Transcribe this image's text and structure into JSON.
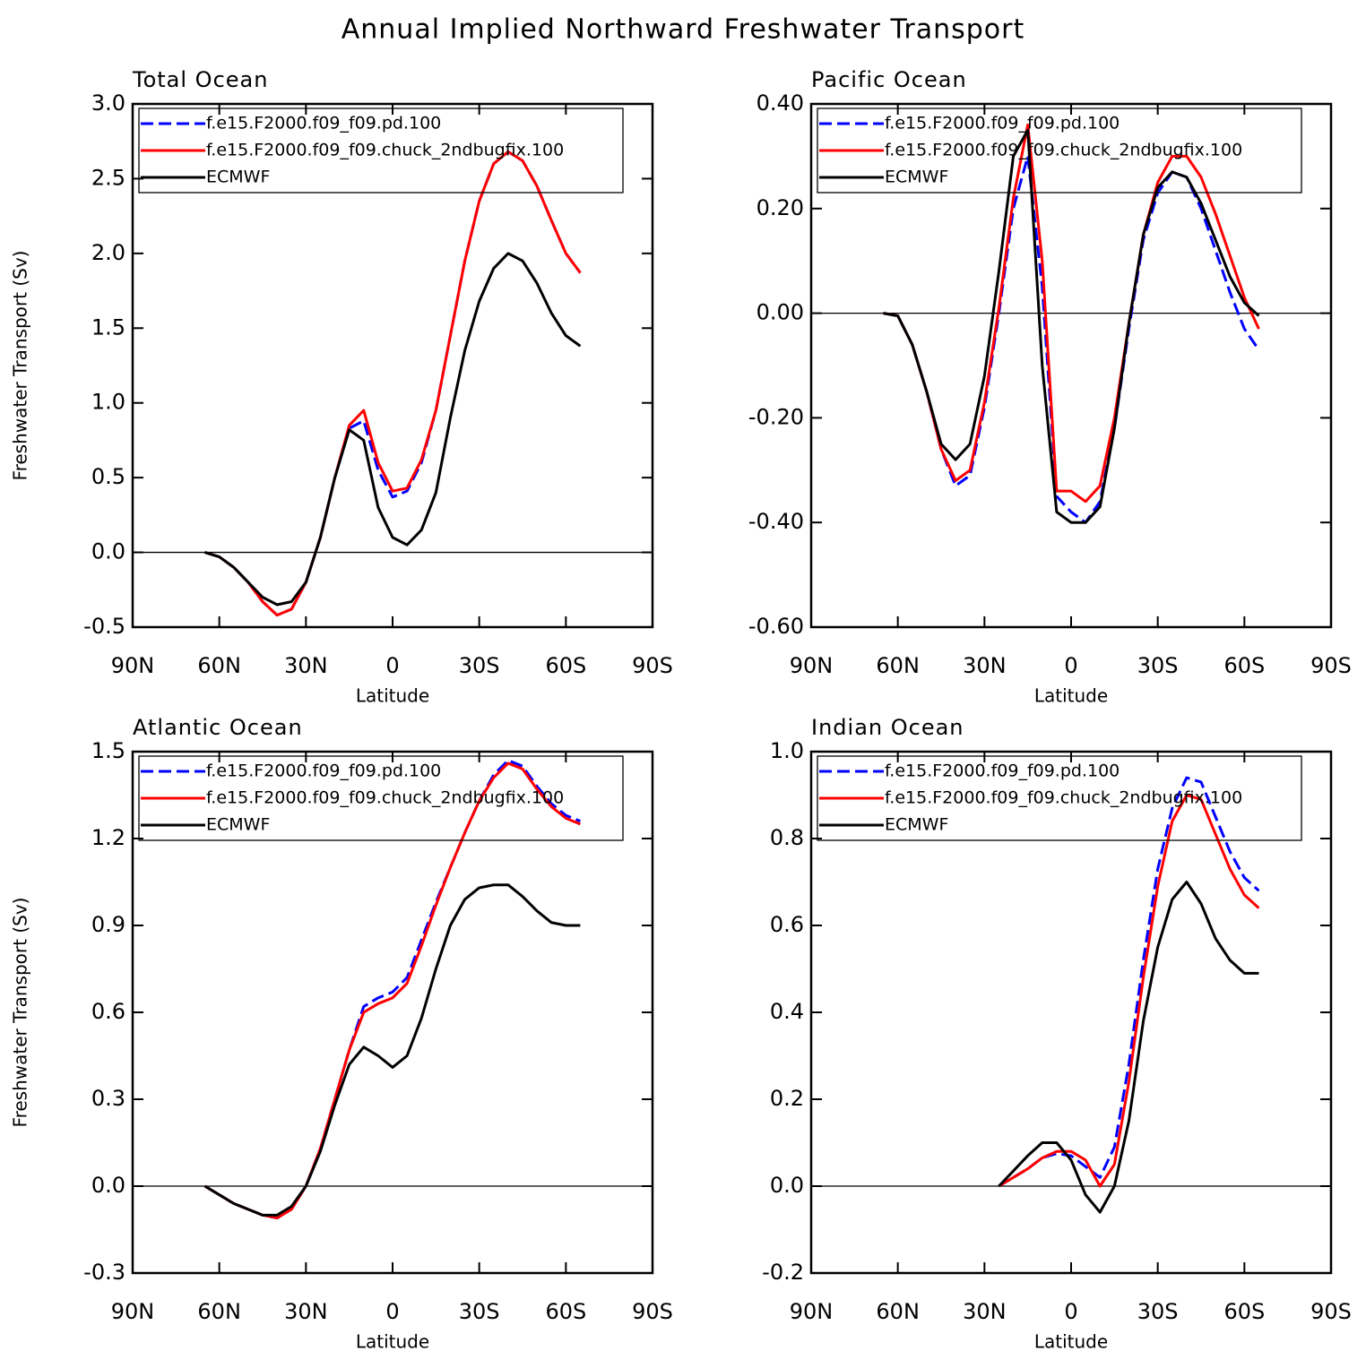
{
  "title": "Annual Implied Northward Freshwater Transport",
  "chart_data": [
    {
      "type": "line",
      "title": "Total Ocean",
      "x_label": "Latitude",
      "y_label": "Freshwater Transport (Sv)",
      "x": [
        65,
        60,
        55,
        50,
        45,
        40,
        35,
        30,
        25,
        20,
        15,
        10,
        5,
        0,
        -5,
        -10,
        -15,
        -20,
        -25,
        -30,
        -35,
        -40,
        -45,
        -50,
        -55,
        -60,
        -65
      ],
      "series": [
        {
          "name": "f.e15.F2000.f09_f09.pd.100",
          "color": "#0000ff",
          "line_style": "dashed",
          "values": [
            0,
            -0.03,
            -0.1,
            -0.2,
            -0.33,
            -0.42,
            -0.38,
            -0.2,
            0.1,
            0.5,
            0.83,
            0.88,
            0.55,
            0.37,
            0.41,
            0.6,
            0.95,
            1.45,
            1.95,
            2.35,
            2.6,
            2.68,
            2.62,
            2.45,
            2.22,
            2.0,
            1.87
          ]
        },
        {
          "name": "f.e15.F2000.f09_f09.chuck_2ndbugfix.100",
          "color": "#ff0000",
          "line_style": "solid",
          "values": [
            0,
            -0.03,
            -0.1,
            -0.2,
            -0.33,
            -0.42,
            -0.38,
            -0.2,
            0.1,
            0.5,
            0.85,
            0.95,
            0.6,
            0.41,
            0.43,
            0.62,
            0.95,
            1.45,
            1.95,
            2.35,
            2.6,
            2.68,
            2.62,
            2.45,
            2.22,
            2.0,
            1.87
          ]
        },
        {
          "name": "ECMWF",
          "color": "#000000",
          "line_style": "solid",
          "values": [
            0,
            -0.03,
            -0.1,
            -0.2,
            -0.3,
            -0.35,
            -0.33,
            -0.2,
            0.1,
            0.5,
            0.82,
            0.75,
            0.3,
            0.1,
            0.05,
            0.15,
            0.4,
            0.9,
            1.35,
            1.68,
            1.9,
            2.0,
            1.95,
            1.8,
            1.6,
            1.45,
            1.38
          ]
        }
      ],
      "xlim": [
        90,
        -90
      ],
      "xticks": [
        {
          "value": 90,
          "label": "90N"
        },
        {
          "value": 60,
          "label": "60N"
        },
        {
          "value": 30,
          "label": "30N"
        },
        0,
        {
          "value": -30,
          "label": "30S"
        },
        {
          "value": -60,
          "label": "60S"
        },
        {
          "value": -90,
          "label": "90S"
        }
      ],
      "ylim": [
        -0.5,
        3.0
      ],
      "yticks": [
        -0.5,
        {
          "value": 0,
          "label": "0.0"
        },
        0.5,
        {
          "value": 1,
          "label": "1.0"
        },
        1.5,
        {
          "value": 2,
          "label": "2.0"
        },
        2.5,
        {
          "value": 3,
          "label": "3.0"
        }
      ]
    },
    {
      "type": "line",
      "title": "Pacific Ocean",
      "x_label": "Latitude",
      "x": [
        65,
        60,
        55,
        50,
        45,
        40,
        35,
        30,
        25,
        20,
        15,
        10,
        5,
        0,
        -5,
        -10,
        -15,
        -20,
        -25,
        -30,
        -35,
        -40,
        -45,
        -50,
        -55,
        -60,
        -65
      ],
      "series": [
        {
          "name": "f.e15.F2000.f09_f09.pd.100",
          "color": "#0000ff",
          "line_style": "dashed",
          "values": [
            0,
            -0.005,
            -0.06,
            -0.15,
            -0.26,
            -0.33,
            -0.31,
            -0.18,
            0.0,
            0.2,
            0.3,
            0.05,
            -0.35,
            -0.38,
            -0.4,
            -0.36,
            -0.22,
            -0.03,
            0.14,
            0.23,
            0.27,
            0.26,
            0.2,
            0.12,
            0.04,
            -0.03,
            -0.07
          ]
        },
        {
          "name": "f.e15.F2000.f09_f09.chuck_2ndbugfix.100",
          "color": "#ff0000",
          "line_style": "solid",
          "values": [
            0,
            -0.005,
            -0.06,
            -0.15,
            -0.26,
            -0.32,
            -0.3,
            -0.17,
            0.01,
            0.22,
            0.36,
            0.1,
            -0.34,
            -0.34,
            -0.36,
            -0.33,
            -0.2,
            -0.02,
            0.15,
            0.25,
            0.3,
            0.3,
            0.26,
            0.19,
            0.11,
            0.03,
            -0.03
          ]
        },
        {
          "name": "ECMWF",
          "color": "#000000",
          "line_style": "solid",
          "values": [
            0,
            -0.005,
            -0.06,
            -0.15,
            -0.25,
            -0.28,
            -0.25,
            -0.12,
            0.08,
            0.3,
            0.35,
            -0.1,
            -0.38,
            -0.4,
            -0.4,
            -0.37,
            -0.22,
            -0.02,
            0.15,
            0.24,
            0.27,
            0.26,
            0.21,
            0.14,
            0.07,
            0.02,
            -0.005
          ]
        }
      ],
      "xlim": [
        90,
        -90
      ],
      "xticks": [
        {
          "value": 90,
          "label": "90N"
        },
        {
          "value": 60,
          "label": "60N"
        },
        {
          "value": 30,
          "label": "30N"
        },
        0,
        {
          "value": -30,
          "label": "30S"
        },
        {
          "value": -60,
          "label": "60S"
        },
        {
          "value": -90,
          "label": "90S"
        }
      ],
      "ylim": [
        -0.6,
        0.4
      ],
      "yticks": [
        {
          "value": -0.6,
          "label": "-0.60"
        },
        {
          "value": -0.4,
          "label": "-0.40"
        },
        {
          "value": -0.2,
          "label": "-0.20"
        },
        {
          "value": 0,
          "label": "0.00"
        },
        {
          "value": 0.2,
          "label": "0.20"
        },
        {
          "value": 0.4,
          "label": "0.40"
        }
      ]
    },
    {
      "type": "line",
      "title": "Atlantic Ocean",
      "x_label": "Latitude",
      "y_label": "Freshwater Transport (Sv)",
      "x": [
        65,
        60,
        55,
        50,
        45,
        40,
        35,
        30,
        25,
        20,
        15,
        10,
        5,
        0,
        -5,
        -10,
        -15,
        -20,
        -25,
        -30,
        -35,
        -40,
        -45,
        -50,
        -55,
        -60,
        -65
      ],
      "series": [
        {
          "name": "f.e15.F2000.f09_f09.pd.100",
          "color": "#0000ff",
          "line_style": "dashed",
          "values": [
            0,
            -0.03,
            -0.06,
            -0.08,
            -0.1,
            -0.11,
            -0.08,
            0,
            0.13,
            0.3,
            0.47,
            0.62,
            0.65,
            0.67,
            0.72,
            0.85,
            0.98,
            1.1,
            1.22,
            1.33,
            1.42,
            1.47,
            1.45,
            1.38,
            1.32,
            1.28,
            1.26
          ]
        },
        {
          "name": "f.e15.F2000.f09_f09.chuck_2ndbugfix.100",
          "color": "#ff0000",
          "line_style": "solid",
          "values": [
            0,
            -0.03,
            -0.06,
            -0.08,
            -0.1,
            -0.11,
            -0.08,
            0,
            0.13,
            0.3,
            0.47,
            0.6,
            0.63,
            0.65,
            0.7,
            0.83,
            0.97,
            1.1,
            1.22,
            1.33,
            1.41,
            1.46,
            1.44,
            1.37,
            1.31,
            1.27,
            1.25
          ]
        },
        {
          "name": "ECMWF",
          "color": "#000000",
          "line_style": "solid",
          "values": [
            0,
            -0.03,
            -0.06,
            -0.08,
            -0.1,
            -0.1,
            -0.07,
            0,
            0.12,
            0.28,
            0.42,
            0.48,
            0.45,
            0.41,
            0.45,
            0.58,
            0.75,
            0.9,
            0.99,
            1.03,
            1.04,
            1.04,
            1.0,
            0.95,
            0.91,
            0.9,
            0.9
          ]
        }
      ],
      "xlim": [
        90,
        -90
      ],
      "xticks": [
        {
          "value": 90,
          "label": "90N"
        },
        {
          "value": 60,
          "label": "60N"
        },
        {
          "value": 30,
          "label": "30N"
        },
        0,
        {
          "value": -30,
          "label": "30S"
        },
        {
          "value": -60,
          "label": "60S"
        },
        {
          "value": -90,
          "label": "90S"
        }
      ],
      "ylim": [
        -0.3,
        1.5
      ],
      "yticks": [
        -0.3,
        {
          "value": 0,
          "label": "0.0"
        },
        0.3,
        0.6,
        0.9,
        1.2,
        1.5
      ]
    },
    {
      "type": "line",
      "title": "Indian Ocean",
      "x_label": "Latitude",
      "x": [
        25,
        20,
        15,
        10,
        5,
        0,
        -5,
        -10,
        -15,
        -20,
        -25,
        -30,
        -35,
        -40,
        -45,
        -50,
        -55,
        -60,
        -65
      ],
      "series": [
        {
          "name": "f.e15.F2000.f09_f09.pd.100",
          "color": "#0000ff",
          "line_style": "dashed",
          "values": [
            0,
            0.02,
            0.04,
            0.065,
            0.075,
            0.07,
            0.045,
            0.02,
            0.09,
            0.28,
            0.52,
            0.73,
            0.87,
            0.94,
            0.93,
            0.85,
            0.77,
            0.71,
            0.68
          ]
        },
        {
          "name": "f.e15.F2000.f09_f09.chuck_2ndbugfix.100",
          "color": "#ff0000",
          "line_style": "solid",
          "values": [
            0,
            0.02,
            0.04,
            0.065,
            0.08,
            0.08,
            0.06,
            0,
            0.05,
            0.24,
            0.48,
            0.69,
            0.84,
            0.9,
            0.89,
            0.81,
            0.73,
            0.67,
            0.64
          ]
        },
        {
          "name": "ECMWF",
          "color": "#000000",
          "line_style": "solid",
          "values": [
            0,
            0.035,
            0.07,
            0.1,
            0.1,
            0.06,
            -0.02,
            -0.06,
            0,
            0.15,
            0.38,
            0.55,
            0.66,
            0.7,
            0.65,
            0.57,
            0.52,
            0.49,
            0.49
          ]
        }
      ],
      "xlim": [
        90,
        -90
      ],
      "xticks": [
        {
          "value": 90,
          "label": "90N"
        },
        {
          "value": 60,
          "label": "60N"
        },
        {
          "value": 30,
          "label": "30N"
        },
        0,
        {
          "value": -30,
          "label": "30S"
        },
        {
          "value": -60,
          "label": "60S"
        },
        {
          "value": -90,
          "label": "90S"
        }
      ],
      "ylim": [
        -0.2,
        1.0
      ],
      "yticks": [
        -0.2,
        {
          "value": 0,
          "label": "0.0"
        },
        0.2,
        0.4,
        0.6,
        0.8,
        {
          "value": 1,
          "label": "1.0"
        }
      ]
    }
  ]
}
